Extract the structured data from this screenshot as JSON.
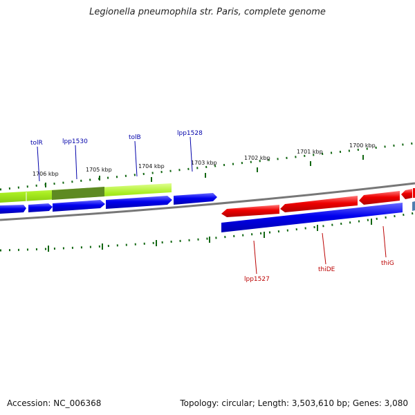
{
  "title": "Legionella pneumophila str. Paris, complete genome",
  "accession_text": "Accession: NC_006368",
  "topology_text": "Topology: circular; Length: 3,503,610 bp; Genes: 3,080",
  "colors": {
    "forward_gene": "#0000ee",
    "reverse_gene": "#ee0000",
    "highlight": "#aaee22",
    "highlight_dark": "#5e8a22",
    "backbone": "#777777",
    "tick": "#116611",
    "forward_label": "#0000aa",
    "reverse_label": "#bb0000"
  },
  "kbp_labels": [
    "1706 kbp",
    "1705 kbp",
    "1704 kbp",
    "1703 kbp",
    "1702 kbp",
    "1701 kbp",
    "1700 kbp"
  ],
  "forward_gene_labels": [
    "tolR",
    "lpp1530",
    "tolB",
    "lpp1528"
  ],
  "reverse_gene_labels": [
    "lpp1527",
    "thiDE",
    "thiG"
  ]
}
